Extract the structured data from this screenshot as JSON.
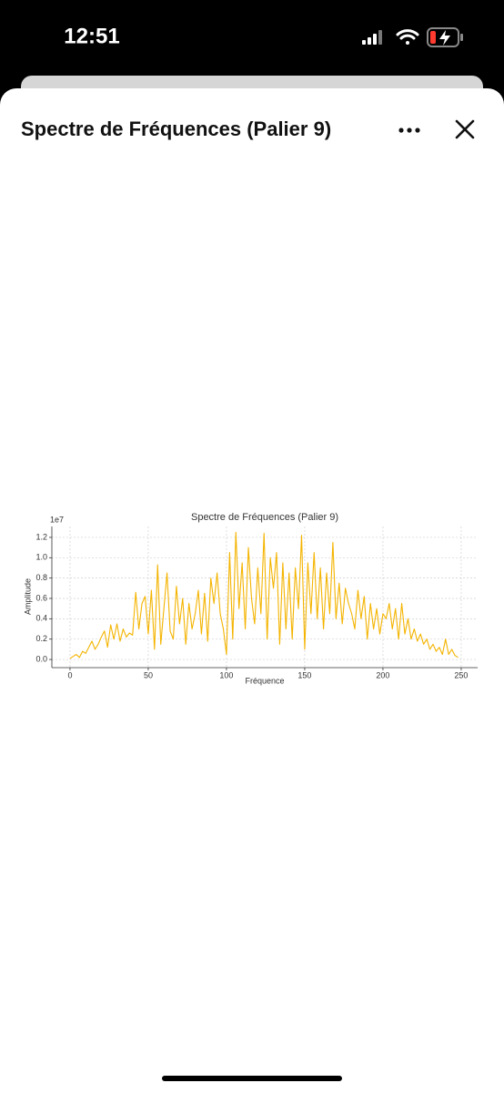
{
  "status_bar": {
    "time": "12:51"
  },
  "header": {
    "title": "Spectre de Fréquences (Palier 9)"
  },
  "chart_data": {
    "type": "line",
    "title": "Spectre de Fréquences (Palier 9)",
    "xlabel": "Fréquence",
    "ylabel": "Amplitude",
    "y_offset_label": "1e7",
    "color": "#f4b400",
    "grid": true,
    "x": [
      0,
      2,
      4,
      6,
      8,
      10,
      12,
      14,
      16,
      18,
      20,
      22,
      24,
      26,
      28,
      30,
      32,
      34,
      36,
      38,
      40,
      42,
      44,
      46,
      48,
      50,
      52,
      54,
      56,
      58,
      60,
      62,
      64,
      66,
      68,
      70,
      72,
      74,
      76,
      78,
      80,
      82,
      84,
      86,
      88,
      90,
      92,
      94,
      96,
      98,
      100,
      102,
      104,
      106,
      108,
      110,
      112,
      114,
      116,
      118,
      120,
      122,
      124,
      126,
      128,
      130,
      132,
      134,
      136,
      138,
      140,
      142,
      144,
      146,
      148,
      150,
      152,
      154,
      156,
      158,
      160,
      162,
      164,
      166,
      168,
      170,
      172,
      174,
      176,
      178,
      180,
      182,
      184,
      186,
      188,
      190,
      192,
      194,
      196,
      198,
      200,
      202,
      204,
      206,
      208,
      210,
      212,
      214,
      216,
      218,
      220,
      222,
      224,
      226,
      228,
      230,
      232,
      234,
      236,
      238,
      240,
      242,
      244,
      246,
      248
    ],
    "values": [
      0.01,
      0.03,
      0.05,
      0.02,
      0.08,
      0.06,
      0.12,
      0.18,
      0.1,
      0.15,
      0.22,
      0.28,
      0.12,
      0.34,
      0.2,
      0.35,
      0.18,
      0.3,
      0.22,
      0.26,
      0.24,
      0.66,
      0.3,
      0.55,
      0.62,
      0.25,
      0.68,
      0.1,
      0.93,
      0.15,
      0.5,
      0.85,
      0.28,
      0.2,
      0.72,
      0.35,
      0.6,
      0.15,
      0.55,
      0.3,
      0.45,
      0.68,
      0.25,
      0.65,
      0.18,
      0.8,
      0.55,
      0.85,
      0.45,
      0.3,
      0.05,
      1.05,
      0.2,
      1.25,
      0.5,
      0.95,
      0.3,
      1.1,
      0.6,
      0.35,
      0.9,
      0.45,
      1.24,
      0.2,
      1.0,
      0.7,
      1.05,
      0.15,
      0.95,
      0.3,
      0.85,
      0.2,
      0.9,
      0.5,
      1.22,
      0.1,
      0.95,
      0.45,
      1.05,
      0.4,
      0.9,
      0.3,
      0.85,
      0.45,
      1.15,
      0.4,
      0.75,
      0.35,
      0.7,
      0.55,
      0.45,
      0.3,
      0.68,
      0.4,
      0.62,
      0.2,
      0.55,
      0.3,
      0.5,
      0.25,
      0.45,
      0.4,
      0.55,
      0.3,
      0.5,
      0.2,
      0.55,
      0.25,
      0.4,
      0.2,
      0.3,
      0.18,
      0.25,
      0.15,
      0.2,
      0.1,
      0.15,
      0.08,
      0.12,
      0.05,
      0.2,
      0.05,
      0.1,
      0.04,
      0.02
    ],
    "xlim": [
      -11.6,
      260.5
    ],
    "ylim": [
      -0.08,
      1.307
    ],
    "xticks": [
      0,
      50,
      100,
      150,
      200,
      250
    ],
    "yticks": [
      {
        "value": 0,
        "label": "0.0"
      },
      0.2,
      0.4,
      0.6,
      0.8,
      {
        "value": 1,
        "label": "1.0"
      },
      1.2
    ]
  }
}
